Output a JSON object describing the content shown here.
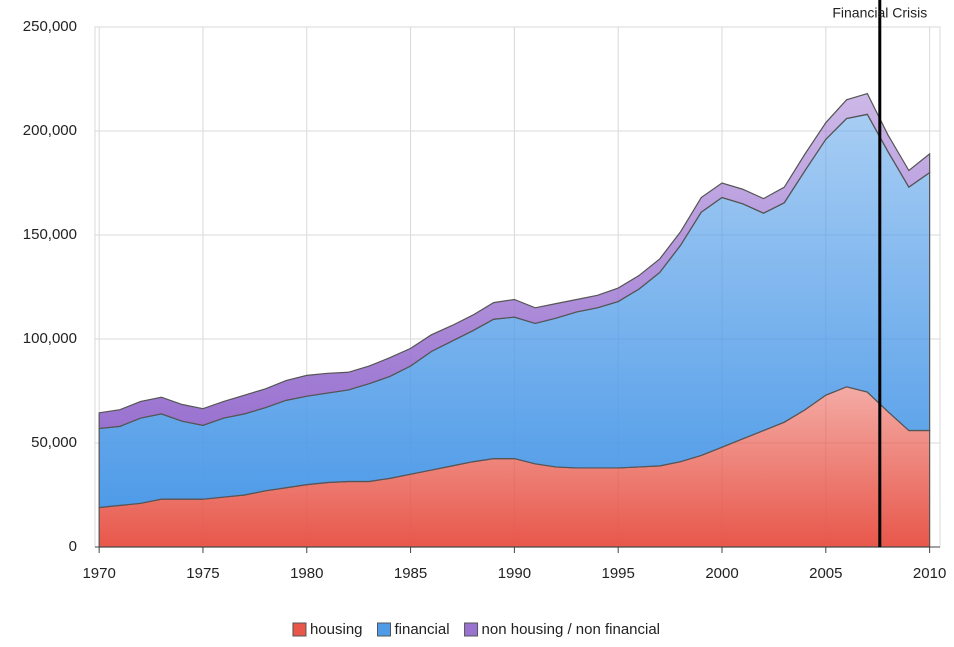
{
  "chart_data": {
    "type": "stacked_area",
    "x": [
      1970,
      1971,
      1972,
      1973,
      1974,
      1975,
      1976,
      1977,
      1978,
      1979,
      1980,
      1981,
      1982,
      1983,
      1984,
      1985,
      1986,
      1987,
      1988,
      1989,
      1990,
      1991,
      1992,
      1993,
      1994,
      1995,
      1996,
      1997,
      1998,
      1999,
      2000,
      2001,
      2002,
      2003,
      2004,
      2005,
      2006,
      2007,
      2008,
      2009,
      2010
    ],
    "series": [
      {
        "name": "housing",
        "color": "#e8574a",
        "values": [
          19000,
          20000,
          21000,
          23000,
          23000,
          23000,
          24000,
          25000,
          27000,
          28500,
          30000,
          31000,
          31500,
          31500,
          33000,
          35000,
          37000,
          39000,
          41000,
          42500,
          42500,
          40000,
          38500,
          38000,
          38000,
          38000,
          38500,
          39000,
          41000,
          44000,
          48000,
          52000,
          56000,
          60000,
          66000,
          73000,
          77000,
          74500,
          65000,
          56000,
          56000
        ]
      },
      {
        "name": "financial",
        "color": "#4f9be8",
        "values": [
          38000,
          38000,
          41000,
          41000,
          37500,
          35500,
          38000,
          39000,
          40000,
          42000,
          42500,
          43000,
          44000,
          47000,
          49000,
          52000,
          57000,
          60000,
          63000,
          67000,
          68000,
          67500,
          71500,
          75000,
          77000,
          80000,
          85500,
          93000,
          104000,
          117000,
          120000,
          113000,
          104500,
          105500,
          115000,
          123000,
          129000,
          133500,
          125000,
          117000,
          124000
        ]
      },
      {
        "name": "non housing / non financial",
        "color": "#9a72d0",
        "values": [
          7500,
          8000,
          8000,
          8000,
          8000,
          8000,
          8000,
          9000,
          9000,
          9500,
          10000,
          9500,
          8500,
          8500,
          9000,
          8500,
          8000,
          7500,
          7500,
          8000,
          8500,
          7500,
          7000,
          6000,
          6000,
          6500,
          6500,
          6500,
          6500,
          7000,
          7000,
          7000,
          7000,
          7500,
          8000,
          8000,
          9000,
          10000,
          8000,
          8000,
          9000
        ]
      }
    ],
    "xlim": [
      1969.8,
      2010.5
    ],
    "xticks": [
      1970,
      1975,
      1980,
      1985,
      1990,
      1995,
      2000,
      2005,
      2010
    ],
    "ylim": [
      0,
      250000
    ],
    "yticks": [
      0,
      {
        "value": 50000,
        "label": "50,000"
      },
      {
        "value": 100000,
        "label": "100,000"
      },
      {
        "value": 150000,
        "label": "150,000"
      },
      {
        "value": 200000,
        "label": "200,000"
      },
      {
        "value": 250000,
        "label": "250,000"
      }
    ],
    "grid": true,
    "legend": "bottom",
    "annotation": {
      "text": "Financial Crisis",
      "x": 2007.6,
      "color": "#000000"
    }
  }
}
